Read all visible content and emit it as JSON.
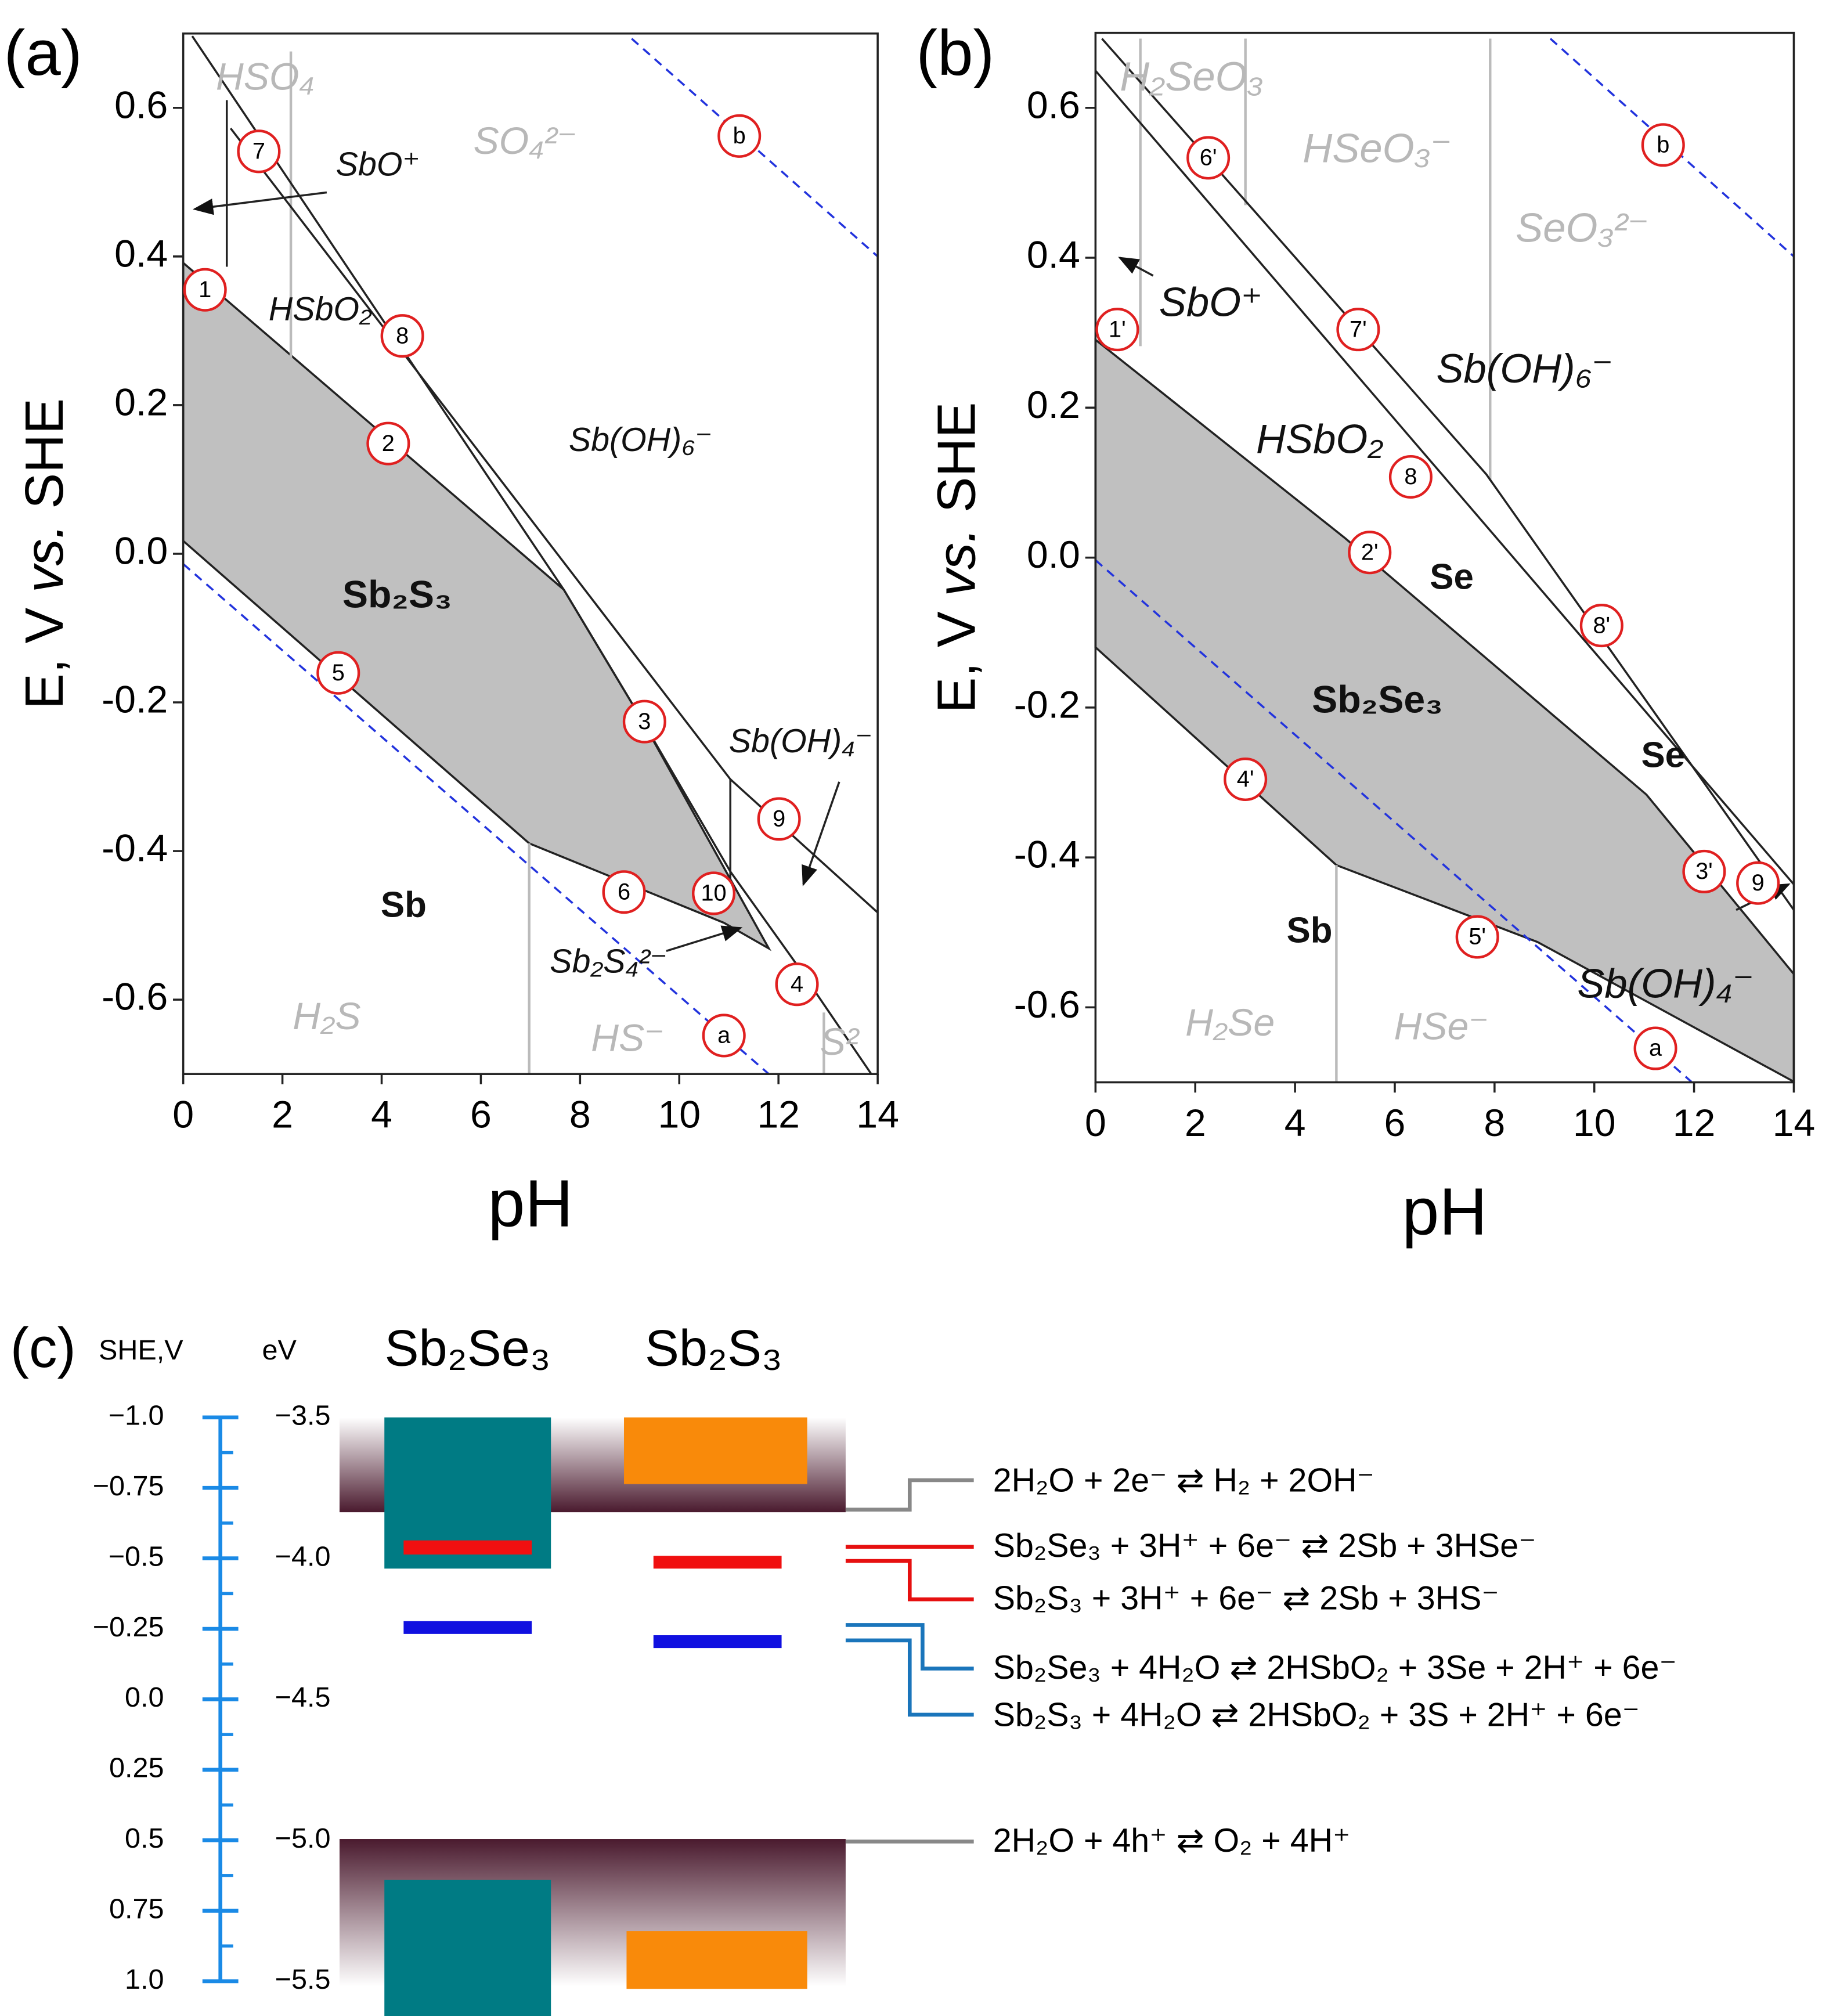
{
  "panel_a": {
    "label": "(a)",
    "xlabel": "pH",
    "ylabel": [
      "E, V ",
      "vs.",
      " SHE"
    ],
    "xlim": [
      0,
      14
    ],
    "xticks": [
      0,
      2,
      4,
      6,
      8,
      10,
      12,
      14
    ],
    "ylim": [
      -0.7,
      0.7
    ],
    "yticks": [
      -0.6,
      -0.4,
      -0.2,
      {
        "value": 0,
        "label": "0.0"
      },
      0.2,
      0.4,
      0.6
    ],
    "regions": [
      "HSO₄",
      "SO₄²⁻",
      "SbO⁺",
      "HSbO₂",
      "Sb(OH)₆⁻",
      "Sb₂S₃",
      "Sb(OH)₄⁻",
      "Sb",
      "Sb₂S₄²⁻",
      "H₂S",
      "HS⁻",
      "S²"
    ],
    "points": [
      "1",
      "2",
      "3",
      "4",
      "5",
      "6",
      "7",
      "8",
      "9",
      "10",
      "a",
      "b"
    ]
  },
  "panel_b": {
    "label": "(b)",
    "xlabel": "pH",
    "ylabel": [
      "E, V ",
      "vs.",
      " SHE"
    ],
    "xlim": [
      0,
      14
    ],
    "xticks": [
      0,
      2,
      4,
      6,
      8,
      10,
      12,
      14
    ],
    "ylim": [
      -0.7,
      0.7
    ],
    "yticks": [
      -0.6,
      -0.4,
      -0.2,
      {
        "value": 0,
        "label": "0.0"
      },
      0.2,
      0.4,
      0.6
    ],
    "regions": [
      "H₂SeO₃",
      "HSeO₃⁻",
      "SeO₃²⁻",
      "SbO⁺",
      "Sb(OH)₆⁻",
      "HSbO₂",
      "Se",
      "Sb₂Se₃",
      "Se",
      "Sb(OH)₄⁻",
      "Sb",
      "H₂Se",
      "HSe⁻"
    ],
    "points": [
      "1'",
      "2'",
      "3'",
      "4'",
      "5'",
      "6'",
      "7'",
      "8",
      "8'",
      "9",
      "a",
      "b"
    ]
  },
  "panel_c": {
    "label": "(c)",
    "she_title": "SHE,V",
    "ev_title": "eV",
    "materials": [
      "Sb₂Se₃",
      "Sb₂S₃"
    ],
    "she_lim": [
      -1,
      1
    ],
    "she_ticks": [
      {
        "value": -1,
        "label": "−1.0"
      },
      {
        "value": -0.75,
        "label": "−0.75"
      },
      {
        "value": -0.5,
        "label": "−0.5"
      },
      {
        "value": -0.25,
        "label": "−0.25"
      },
      {
        "value": 0,
        "label": "0.0"
      },
      0.25,
      0.5,
      0.75,
      {
        "value": 1,
        "label": "1.0"
      }
    ],
    "ev_lim": [
      -3.5,
      -5.5
    ],
    "ev_ticks": [
      {
        "value": -3.5,
        "label": "−3.5"
      },
      {
        "value": -4,
        "label": "−4.0"
      },
      {
        "value": -4.5,
        "label": "−4.5"
      },
      {
        "value": -5,
        "label": "−5.0"
      },
      {
        "value": -5.5,
        "label": "−5.5"
      }
    ],
    "reactions": [
      "2H₂O + 2e⁻ ⇄ H₂ + 2OH⁻",
      "Sb₂Se₃ + 3H⁺ + 6e⁻ ⇄ 2Sb + 3HSe⁻",
      "Sb₂S₃ + 3H⁺ + 6e⁻ ⇄ 2Sb + 3HS⁻",
      "Sb₂Se₃ + 4H₂O ⇄ 2HSbO₂ + 3Se + 2H⁺ + 6e⁻",
      "Sb₂S₃ + 4H₂O ⇄ 2HSbO₂ + 3S + 2H⁺ + 6e⁻",
      "2H₂O + 4h⁺ ⇄ O₂ + 4H⁺"
    ]
  }
}
